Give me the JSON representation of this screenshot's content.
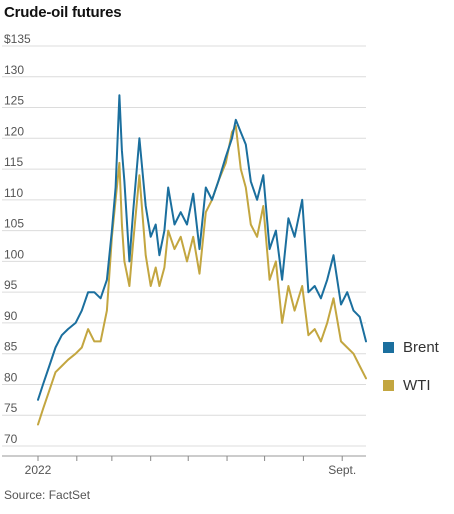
{
  "title": "Crude-oil futures",
  "source": "Source: FactSet",
  "chart_data": {
    "type": "line",
    "ylim": [
      70,
      135
    ],
    "y_ticks": [
      {
        "value": 135,
        "label": "$135"
      },
      {
        "value": 130,
        "label": "130"
      },
      {
        "value": 125,
        "label": "125"
      },
      {
        "value": 120,
        "label": "120"
      },
      {
        "value": 115,
        "label": "115"
      },
      {
        "value": 110,
        "label": "110"
      },
      {
        "value": 105,
        "label": "105"
      },
      {
        "value": 100,
        "label": "100"
      },
      {
        "value": 95,
        "label": "95"
      },
      {
        "value": 90,
        "label": "90"
      },
      {
        "value": 85,
        "label": "85"
      },
      {
        "value": 80,
        "label": "80"
      },
      {
        "value": 75,
        "label": "75"
      },
      {
        "value": 70,
        "label": "70"
      }
    ],
    "x_labels": [
      {
        "x": "2022-01-01",
        "label": "2022"
      },
      {
        "x": "2022-09-01",
        "label": "Sept."
      }
    ],
    "x_range": [
      "2022-01-01",
      "2022-09-20"
    ],
    "grid": true,
    "legend_position": "right",
    "series": [
      {
        "name": "Brent",
        "color": "#1b6f9e",
        "x": [
          "2022-01-01",
          "2022-01-05",
          "2022-01-10",
          "2022-01-15",
          "2022-01-20",
          "2022-01-25",
          "2022-01-31",
          "2022-02-05",
          "2022-02-10",
          "2022-02-15",
          "2022-02-20",
          "2022-02-25",
          "2022-03-01",
          "2022-03-04",
          "2022-03-07",
          "2022-03-09",
          "2022-03-11",
          "2022-03-15",
          "2022-03-18",
          "2022-03-23",
          "2022-03-28",
          "2022-04-01",
          "2022-04-05",
          "2022-04-08",
          "2022-04-12",
          "2022-04-15",
          "2022-04-20",
          "2022-04-25",
          "2022-04-30",
          "2022-05-05",
          "2022-05-10",
          "2022-05-15",
          "2022-05-20",
          "2022-05-25",
          "2022-05-31",
          "2022-06-05",
          "2022-06-08",
          "2022-06-12",
          "2022-06-16",
          "2022-06-20",
          "2022-06-25",
          "2022-06-30",
          "2022-07-05",
          "2022-07-10",
          "2022-07-15",
          "2022-07-20",
          "2022-07-25",
          "2022-07-31",
          "2022-08-05",
          "2022-08-10",
          "2022-08-15",
          "2022-08-20",
          "2022-08-25",
          "2022-08-31",
          "2022-09-05",
          "2022-09-10",
          "2022-09-15",
          "2022-09-20"
        ],
        "values": [
          77.5,
          80,
          83,
          86,
          88,
          89,
          90,
          92,
          95,
          95,
          94,
          97,
          105,
          112,
          127,
          118,
          113,
          100,
          108,
          120,
          109,
          104,
          106,
          101,
          105,
          112,
          106,
          108,
          106,
          111,
          102,
          112,
          110,
          113,
          117,
          120,
          123,
          121,
          119,
          113,
          110,
          114,
          102,
          105,
          97,
          107,
          104,
          110,
          95,
          96,
          94,
          97,
          101,
          93,
          95,
          92,
          91,
          87
        ]
      },
      {
        "name": "WTI",
        "color": "#c3a640",
        "x": [
          "2022-01-01",
          "2022-01-05",
          "2022-01-10",
          "2022-01-15",
          "2022-01-20",
          "2022-01-25",
          "2022-01-31",
          "2022-02-05",
          "2022-02-10",
          "2022-02-15",
          "2022-02-20",
          "2022-02-25",
          "2022-03-01",
          "2022-03-04",
          "2022-03-07",
          "2022-03-09",
          "2022-03-11",
          "2022-03-15",
          "2022-03-18",
          "2022-03-23",
          "2022-03-28",
          "2022-04-01",
          "2022-04-05",
          "2022-04-08",
          "2022-04-12",
          "2022-04-15",
          "2022-04-20",
          "2022-04-25",
          "2022-04-30",
          "2022-05-05",
          "2022-05-10",
          "2022-05-15",
          "2022-05-20",
          "2022-05-25",
          "2022-05-31",
          "2022-06-05",
          "2022-06-08",
          "2022-06-12",
          "2022-06-16",
          "2022-06-20",
          "2022-06-25",
          "2022-06-30",
          "2022-07-05",
          "2022-07-10",
          "2022-07-15",
          "2022-07-20",
          "2022-07-25",
          "2022-07-31",
          "2022-08-05",
          "2022-08-10",
          "2022-08-15",
          "2022-08-20",
          "2022-08-25",
          "2022-08-31",
          "2022-09-05",
          "2022-09-10",
          "2022-09-15",
          "2022-09-20"
        ],
        "values": [
          73.5,
          76,
          79,
          82,
          83,
          84,
          85,
          86,
          89,
          87,
          87,
          92,
          104,
          110,
          116,
          106,
          100,
          96,
          103,
          114,
          101,
          96,
          99,
          96,
          99,
          105,
          102,
          104,
          100,
          104,
          98,
          108,
          110,
          113,
          116,
          121,
          122,
          115,
          112,
          106,
          104,
          109,
          97,
          100,
          90,
          96,
          92,
          96,
          88,
          89,
          87,
          90,
          94,
          87,
          86,
          85,
          83,
          81
        ]
      }
    ]
  }
}
